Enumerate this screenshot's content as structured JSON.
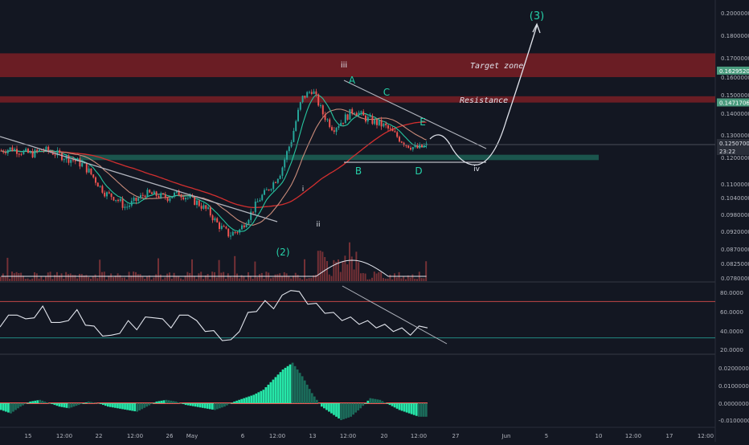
{
  "chart_data": [
    {
      "type": "candlestick",
      "panel": "price",
      "x_ticks": [
        "15",
        "12:00",
        "22",
        "12:00",
        "26",
        "May",
        "6",
        "12:00",
        "13",
        "12:00",
        "20",
        "12:00",
        "27",
        "Jun",
        "5",
        "10",
        "12:00",
        "17",
        "12:00"
      ],
      "y_ticks": [
        "0.20000000",
        "0.18000000",
        "0.17000000",
        "0.16000000",
        "0.15000000",
        "0.14000000",
        "0.13000000",
        "0.12000000",
        "0.11000000",
        "0.10400000",
        "0.09800000",
        "0.09200000",
        "0.08700000",
        "0.08250000",
        "0.07800000"
      ],
      "price_labels": {
        "target": "0.16295208",
        "resistance": "0.14717068",
        "current": "0.12507000",
        "countdown": "23:22"
      },
      "zones": [
        {
          "label": "Target zone",
          "low": 0.16,
          "high": 0.172,
          "color": "#7a1e24"
        },
        {
          "label": "Resistance",
          "low": 0.1458,
          "high": 0.1492,
          "color": "#7a1e24"
        },
        {
          "label": "",
          "low": 0.119,
          "high": 0.1212,
          "color": "#1f6b5c"
        }
      ],
      "wave_labels": [
        "(3)",
        "iii",
        "A",
        "C",
        "E",
        "B",
        "D",
        "iv",
        "i",
        "ii",
        "(2)"
      ],
      "series": [
        {
          "values": [
            0.123,
            0.124,
            0.1225,
            0.1215,
            0.1235,
            0.1222,
            0.1205,
            0.119,
            0.117,
            0.112,
            0.106,
            0.104,
            0.1005,
            0.103,
            0.106,
            0.105,
            0.104,
            0.106,
            0.104,
            0.102,
            0.099,
            0.094,
            0.091,
            0.0925,
            0.098,
            0.104,
            0.109,
            0.115,
            0.128,
            0.148,
            0.153,
            0.14,
            0.133,
            0.137,
            0.142,
            0.138,
            0.136,
            0.134,
            0.13,
            0.126,
            0.124,
            0.1251
          ]
        }
      ]
    },
    {
      "type": "line",
      "panel": "oscillator",
      "y_ticks": [
        "80.0000",
        "60.0000",
        "40.0000",
        "20.0000"
      ],
      "levels": [
        70,
        30
      ],
      "series": [
        {
          "values": [
            45,
            52,
            58,
            48,
            55,
            62,
            50,
            44,
            52,
            58,
            47,
            40,
            35,
            30,
            38,
            46,
            42,
            50,
            55,
            48,
            44,
            52,
            58,
            46,
            40,
            35,
            30,
            25,
            40,
            55,
            62,
            68,
            65,
            74,
            85,
            78,
            70,
            65,
            60,
            55,
            52,
            50,
            48,
            46,
            44,
            42,
            40,
            38,
            36,
            40,
            44
          ]
        }
      ]
    },
    {
      "type": "bar",
      "panel": "histogram",
      "y_ticks": [
        "0.02000000",
        "0.01000000",
        "0.00000000",
        "-0.01000000"
      ],
      "series": [
        {
          "values": [
            -0.004,
            -0.006,
            -0.002,
            0.001,
            0.002,
            0.0,
            -0.002,
            -0.003,
            -0.001,
            0.001,
            0.0,
            -0.002,
            -0.003,
            -0.004,
            -0.005,
            -0.002,
            0.001,
            0.002,
            0.001,
            -0.001,
            -0.002,
            -0.003,
            -0.004,
            -0.002,
            0.001,
            0.003,
            0.005,
            0.008,
            0.014,
            0.02,
            0.024,
            0.016,
            0.006,
            -0.002,
            -0.006,
            -0.01,
            -0.008,
            -0.003,
            0.003,
            0.002,
            -0.001,
            -0.004,
            -0.006,
            -0.008
          ]
        }
      ]
    }
  ]
}
